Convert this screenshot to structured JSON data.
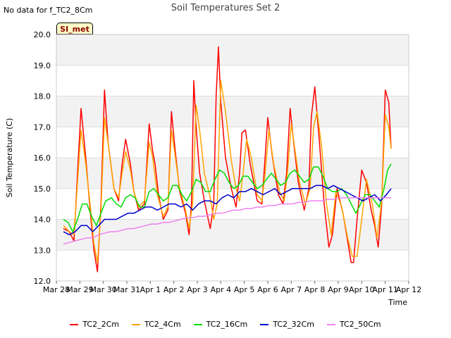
{
  "note": "No data for f_TC2_8Cm",
  "badge": "SI_met",
  "chart_data": {
    "type": "line",
    "title": "Soil Temperatures Set 2",
    "xlabel": "Time",
    "ylabel": "Soil Temperature (C)",
    "xlim": [
      0,
      15
    ],
    "ylim": [
      12.0,
      20.0
    ],
    "x_tick_values": [
      0,
      1,
      2,
      3,
      4,
      5,
      6,
      7,
      8,
      9,
      10,
      11,
      12,
      13,
      14,
      15
    ],
    "x_tick_labels": [
      "Mar 28",
      "Mar 29",
      "Mar 30",
      "Mar 31",
      "Apr 1",
      "Apr 2",
      "Apr 3",
      "Apr 4",
      "Apr 5",
      "Apr 6",
      "Apr 7",
      "Apr 8",
      "Apr 9",
      "Apr 10",
      "Apr 11",
      "Apr 12"
    ],
    "y_ticks": [
      12.0,
      13.0,
      14.0,
      15.0,
      16.0,
      17.0,
      18.0,
      19.0,
      20.0
    ],
    "y_tick_labels": [
      "12.0",
      "13.0",
      "14.0",
      "15.0",
      "16.0",
      "17.0",
      "18.0",
      "19.0",
      "20.0"
    ],
    "grid": true,
    "legend_position": "bottom",
    "series": [
      {
        "name": "TC2_2Cm",
        "color": "#ff0000",
        "x": [
          0.3,
          0.55,
          0.75,
          0.9,
          1.05,
          1.25,
          1.45,
          1.6,
          1.75,
          1.9,
          2.05,
          2.2,
          2.45,
          2.65,
          2.8,
          2.95,
          3.15,
          3.3,
          3.5,
          3.75,
          3.95,
          4.1,
          4.2,
          4.35,
          4.55,
          4.75,
          4.9,
          5.05,
          5.25,
          5.5,
          5.65,
          5.75,
          5.85,
          5.95,
          6.1,
          6.3,
          6.55,
          6.7,
          6.8,
          6.9,
          7.0,
          7.2,
          7.45,
          7.65,
          7.8,
          7.9,
          8.05,
          8.25,
          8.55,
          8.75,
          8.85,
          9.0,
          9.2,
          9.45,
          9.65,
          9.8,
          9.95,
          10.1,
          10.3,
          10.55,
          10.75,
          10.85,
          11.0,
          11.2,
          11.4,
          11.6,
          11.75,
          11.95,
          12.2,
          12.4,
          12.55,
          12.65,
          12.8,
          13.0,
          13.2,
          13.4,
          13.55,
          13.7,
          13.85,
          14.0,
          14.15,
          14.25
        ],
        "values": [
          13.7,
          13.6,
          13.3,
          15.5,
          17.6,
          16.0,
          14.2,
          13.0,
          12.3,
          14.5,
          18.2,
          16.5,
          15.0,
          14.6,
          15.8,
          16.6,
          15.8,
          14.9,
          14.3,
          14.5,
          17.1,
          16.2,
          15.8,
          14.8,
          14.0,
          14.3,
          17.5,
          16.3,
          14.9,
          14.2,
          13.5,
          14.5,
          18.5,
          17.0,
          15.5,
          14.6,
          13.7,
          14.5,
          18.0,
          19.6,
          17.8,
          16.0,
          15.0,
          14.4,
          15.5,
          16.8,
          16.9,
          15.8,
          14.6,
          14.5,
          15.6,
          17.3,
          16.0,
          14.8,
          14.5,
          15.5,
          17.6,
          16.5,
          15.2,
          14.3,
          15.0,
          17.3,
          18.3,
          16.5,
          14.5,
          13.1,
          13.5,
          15.0,
          14.2,
          13.3,
          12.6,
          12.6,
          14.0,
          15.6,
          15.2,
          14.3,
          13.8,
          13.1,
          14.5,
          18.2,
          17.8,
          16.3
        ]
      },
      {
        "name": "TC2_4Cm",
        "color": "#ffa500",
        "x": [
          0.3,
          0.55,
          0.75,
          0.9,
          1.05,
          1.25,
          1.45,
          1.6,
          1.75,
          1.9,
          2.05,
          2.25,
          2.45,
          2.65,
          2.8,
          2.95,
          3.15,
          3.3,
          3.5,
          3.75,
          3.95,
          4.1,
          4.3,
          4.55,
          4.75,
          4.9,
          5.05,
          5.25,
          5.5,
          5.65,
          5.8,
          5.95,
          6.1,
          6.3,
          6.55,
          6.7,
          6.85,
          7.0,
          7.2,
          7.45,
          7.65,
          7.8,
          7.95,
          8.1,
          8.3,
          8.55,
          8.75,
          8.9,
          9.05,
          9.25,
          9.5,
          9.7,
          9.85,
          10.0,
          10.15,
          10.35,
          10.6,
          10.8,
          10.95,
          11.1,
          11.3,
          11.5,
          11.7,
          11.9,
          12.15,
          12.4,
          12.6,
          12.8,
          13.0,
          13.2,
          13.45,
          13.65,
          13.85,
          14.0,
          14.15,
          14.25
        ],
        "values": [
          13.8,
          13.6,
          13.5,
          15.2,
          16.9,
          15.8,
          14.4,
          13.2,
          12.6,
          14.3,
          17.3,
          16.2,
          15.0,
          14.7,
          15.5,
          16.2,
          15.6,
          14.9,
          14.4,
          14.6,
          16.5,
          16.0,
          14.8,
          14.1,
          14.4,
          16.9,
          16.1,
          15.0,
          14.3,
          13.7,
          14.5,
          17.7,
          16.9,
          15.5,
          14.7,
          14.0,
          14.5,
          18.5,
          17.5,
          15.9,
          15.0,
          14.6,
          15.5,
          16.6,
          16.0,
          14.8,
          14.6,
          15.6,
          16.9,
          15.8,
          14.9,
          14.6,
          15.6,
          17.1,
          16.3,
          15.2,
          14.5,
          15.0,
          17.0,
          17.5,
          16.3,
          14.5,
          13.5,
          14.9,
          14.4,
          13.4,
          12.8,
          12.8,
          14.0,
          15.3,
          14.5,
          13.4,
          14.6,
          17.4,
          17.0,
          16.3
        ]
      },
      {
        "name": "TC2_16Cm",
        "color": "#00dd00",
        "x": [
          0.3,
          0.5,
          0.7,
          0.9,
          1.1,
          1.3,
          1.5,
          1.7,
          1.9,
          2.1,
          2.35,
          2.55,
          2.75,
          2.95,
          3.15,
          3.35,
          3.55,
          3.75,
          3.95,
          4.15,
          4.35,
          4.55,
          4.75,
          4.95,
          5.15,
          5.35,
          5.55,
          5.75,
          5.95,
          6.15,
          6.35,
          6.55,
          6.75,
          6.95,
          7.15,
          7.35,
          7.55,
          7.75,
          7.95,
          8.15,
          8.35,
          8.55,
          8.75,
          8.95,
          9.15,
          9.35,
          9.55,
          9.75,
          9.95,
          10.15,
          10.35,
          10.55,
          10.75,
          10.95,
          11.15,
          11.35,
          11.55,
          11.75,
          11.95,
          12.15,
          12.35,
          12.55,
          12.75,
          12.95,
          13.15,
          13.35,
          13.55,
          13.75,
          13.95,
          14.1,
          14.25
        ],
        "values": [
          14.0,
          13.9,
          13.6,
          14.0,
          14.5,
          14.5,
          14.1,
          13.8,
          14.2,
          14.6,
          14.7,
          14.5,
          14.4,
          14.7,
          14.8,
          14.7,
          14.4,
          14.4,
          14.9,
          15.0,
          14.8,
          14.6,
          14.7,
          15.1,
          15.1,
          14.8,
          14.6,
          14.9,
          15.3,
          15.2,
          14.9,
          14.9,
          15.3,
          15.6,
          15.5,
          15.2,
          15.0,
          15.1,
          15.4,
          15.4,
          15.2,
          15.0,
          15.1,
          15.3,
          15.5,
          15.3,
          15.1,
          15.2,
          15.5,
          15.6,
          15.4,
          15.2,
          15.3,
          15.7,
          15.7,
          15.4,
          15.0,
          14.9,
          14.9,
          15.0,
          14.8,
          14.5,
          14.2,
          14.5,
          14.8,
          14.8,
          14.6,
          14.4,
          15.0,
          15.6,
          15.8
        ]
      },
      {
        "name": "TC2_32Cm",
        "color": "#0000cc",
        "x": [
          0.3,
          0.55,
          0.8,
          1.05,
          1.3,
          1.55,
          1.8,
          2.05,
          2.3,
          2.55,
          2.8,
          3.05,
          3.3,
          3.55,
          3.8,
          4.05,
          4.3,
          4.55,
          4.8,
          5.05,
          5.3,
          5.55,
          5.8,
          6.05,
          6.3,
          6.55,
          6.8,
          7.05,
          7.3,
          7.55,
          7.8,
          8.05,
          8.3,
          8.55,
          8.8,
          9.05,
          9.3,
          9.55,
          9.8,
          10.05,
          10.3,
          10.55,
          10.8,
          11.05,
          11.3,
          11.55,
          11.8,
          12.05,
          12.3,
          12.55,
          12.8,
          13.05,
          13.3,
          13.55,
          13.8,
          14.05,
          14.25
        ],
        "values": [
          13.6,
          13.5,
          13.6,
          13.8,
          13.8,
          13.6,
          13.8,
          14.0,
          14.0,
          14.0,
          14.1,
          14.2,
          14.2,
          14.3,
          14.4,
          14.4,
          14.3,
          14.4,
          14.5,
          14.5,
          14.4,
          14.5,
          14.3,
          14.5,
          14.6,
          14.6,
          14.5,
          14.7,
          14.8,
          14.7,
          14.9,
          14.9,
          15.0,
          14.9,
          14.8,
          14.9,
          15.0,
          14.8,
          14.9,
          15.0,
          15.0,
          15.0,
          15.0,
          15.1,
          15.1,
          15.0,
          15.1,
          15.0,
          14.9,
          14.8,
          14.7,
          14.6,
          14.7,
          14.8,
          14.6,
          14.8,
          15.0
        ]
      },
      {
        "name": "TC2_50Cm",
        "color": "#ee82ee",
        "x": [
          0.3,
          0.55,
          0.8,
          1.05,
          1.3,
          1.55,
          1.8,
          2.05,
          2.3,
          2.55,
          2.8,
          3.05,
          3.3,
          3.55,
          3.8,
          4.05,
          4.3,
          4.55,
          4.8,
          5.05,
          5.3,
          5.55,
          5.8,
          6.05,
          6.3,
          6.55,
          6.8,
          7.05,
          7.3,
          7.55,
          7.8,
          8.05,
          8.3,
          8.55,
          8.8,
          9.05,
          9.3,
          9.55,
          9.8,
          10.05,
          10.3,
          10.55,
          10.8,
          11.05,
          11.3,
          11.55,
          11.8,
          12.05,
          12.3,
          12.55,
          12.8,
          13.05,
          13.3,
          13.55,
          13.8,
          14.05,
          14.25
        ],
        "values": [
          13.2,
          13.25,
          13.3,
          13.35,
          13.4,
          13.4,
          13.5,
          13.55,
          13.6,
          13.6,
          13.65,
          13.7,
          13.7,
          13.75,
          13.8,
          13.85,
          13.85,
          13.9,
          13.9,
          13.95,
          14.0,
          14.05,
          14.05,
          14.1,
          14.1,
          14.15,
          14.2,
          14.2,
          14.25,
          14.3,
          14.3,
          14.35,
          14.35,
          14.4,
          14.4,
          14.45,
          14.45,
          14.5,
          14.5,
          14.5,
          14.55,
          14.55,
          14.6,
          14.6,
          14.6,
          14.65,
          14.65,
          14.7,
          14.7,
          14.7,
          14.7,
          14.7,
          14.7,
          14.7,
          14.7,
          14.7,
          14.7
        ]
      }
    ]
  }
}
